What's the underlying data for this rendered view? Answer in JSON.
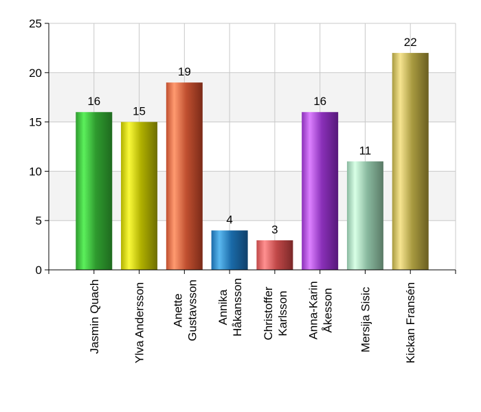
{
  "chart_data": {
    "type": "bar",
    "title": "",
    "xlabel": "",
    "ylabel": "",
    "ylim": [
      0,
      25
    ],
    "yticks": [
      "0",
      "5",
      "10",
      "15",
      "20",
      "25"
    ],
    "grid": true,
    "legend": "none",
    "categories": [
      [
        "Jasmin Quach"
      ],
      [
        "Ylva Andersson"
      ],
      [
        "Anette",
        "Gustavsson"
      ],
      [
        "Annika",
        "Håkansson"
      ],
      [
        "Christoffer",
        "Karlsson"
      ],
      [
        "Anna-Karin",
        "Åkesson"
      ],
      [
        "Mersija Sisic"
      ],
      [
        "Kickan Fransén"
      ]
    ],
    "values": [
      16,
      15,
      19,
      4,
      3,
      16,
      11,
      22
    ],
    "value_labels": [
      "16",
      "15",
      "19",
      "4",
      "3",
      "16",
      "11",
      "22"
    ],
    "colors": [
      [
        "#2e9a2e",
        "#5cf05c",
        "#1f6a1f"
      ],
      [
        "#b0b000",
        "#fafa3a",
        "#6e6e00"
      ],
      [
        "#c05030",
        "#ff9a70",
        "#7a2a18"
      ],
      [
        "#1a6aa8",
        "#5ab8f0",
        "#10406a"
      ],
      [
        "#c04848",
        "#ff9090",
        "#7a2828"
      ],
      [
        "#8a30b8",
        "#dc80ff",
        "#56187a"
      ],
      [
        "#8abaa0",
        "#d8ffe6",
        "#5a7a66"
      ],
      [
        "#a89a40",
        "#f6e490",
        "#6a5e20"
      ]
    ]
  }
}
